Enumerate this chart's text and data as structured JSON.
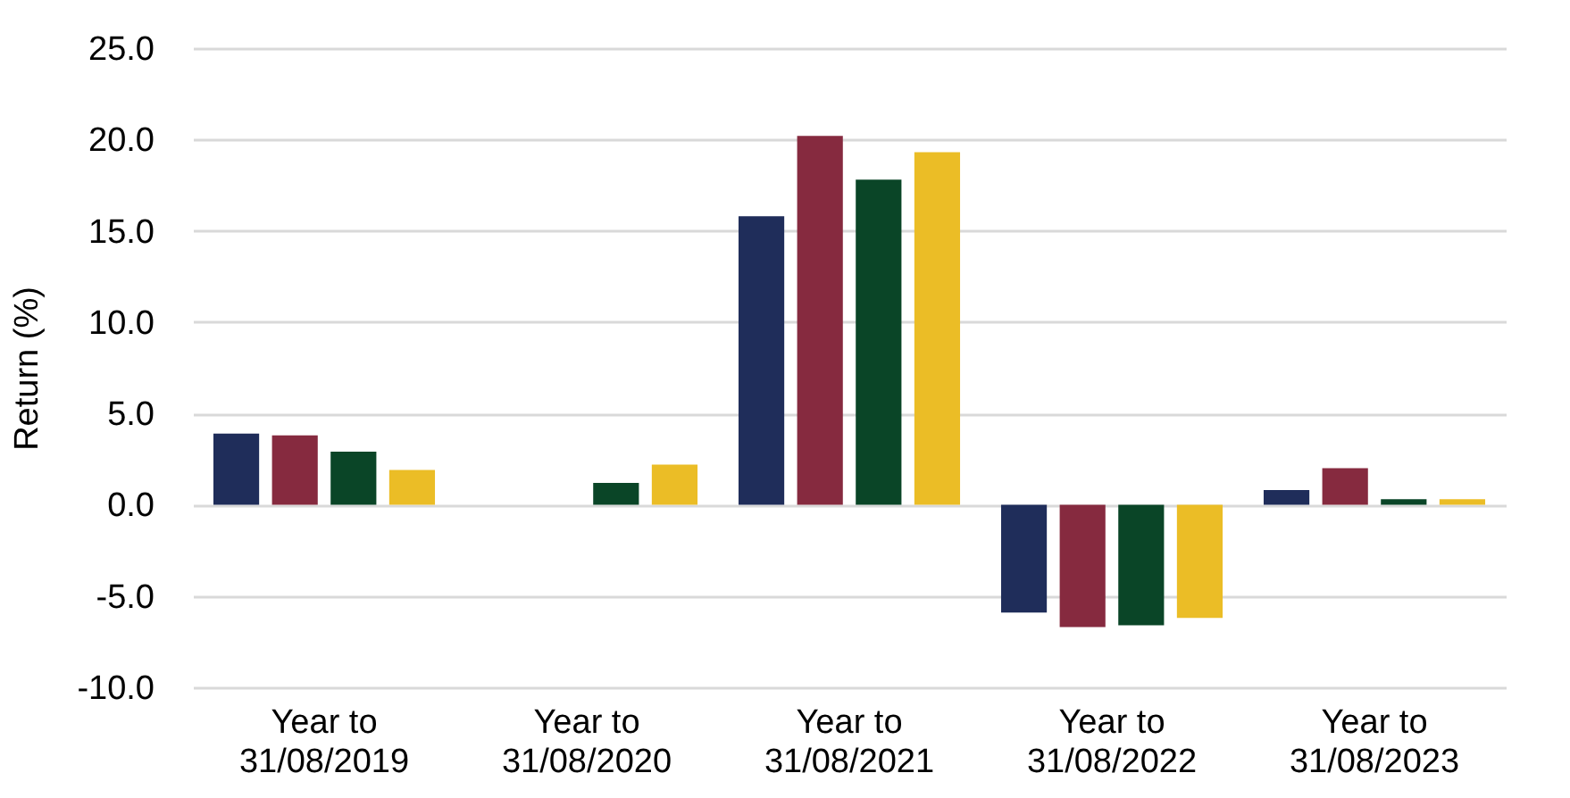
{
  "chart_data": {
    "type": "bar",
    "ylabel": "Return (%)",
    "categories": [
      "Year to 31/08/2019",
      "Year to 31/08/2020",
      "Year to 31/08/2021",
      "Year to 31/08/2022",
      "Year to 31/08/2023"
    ],
    "series": [
      {
        "color": "#1f2d5a",
        "values": [
          3.9,
          0.0,
          15.8,
          -5.9,
          0.8
        ]
      },
      {
        "color": "#862a3f",
        "values": [
          3.8,
          0.0,
          20.2,
          -6.7,
          2.0
        ]
      },
      {
        "color": "#0a4527",
        "values": [
          2.9,
          1.2,
          17.8,
          -6.6,
          0.3
        ]
      },
      {
        "color": "#ebbd26",
        "values": [
          1.9,
          2.2,
          19.3,
          -6.2,
          0.3
        ]
      }
    ],
    "ylim": [
      -10,
      25
    ],
    "yticks": [
      {
        "value": -10,
        "label": "-10.0"
      },
      {
        "value": -5,
        "label": "-5.0"
      },
      {
        "value": 0,
        "label": "0.0"
      },
      {
        "value": 5,
        "label": "5.0"
      },
      {
        "value": 10,
        "label": "10.0"
      },
      {
        "value": 15,
        "label": "15.0"
      },
      {
        "value": 20,
        "label": "20.0"
      },
      {
        "value": 25,
        "label": "25.0"
      }
    ],
    "grid": "y",
    "legend": false
  }
}
